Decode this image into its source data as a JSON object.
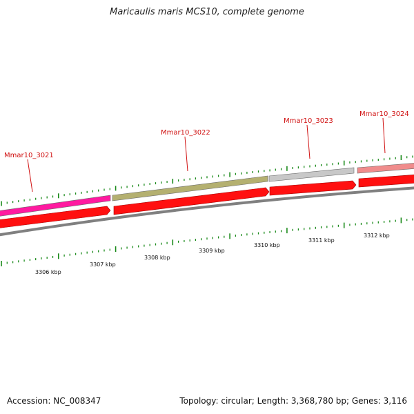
{
  "title": "Maricaulis maris MCS10, complete genome",
  "footer": {
    "accession": "Accession: NC_008347",
    "summary": "Topology: circular; Length: 3,368,780 bp; Genes: 3,116"
  },
  "genes": [
    {
      "label": "Mmar10_3021",
      "color": "#ff1aa0"
    },
    {
      "label": "Mmar10_3022",
      "color": "#b4b070"
    },
    {
      "label": "Mmar10_3023",
      "color": "#c8c8c8"
    },
    {
      "label": "Mmar10_3024",
      "color": "#f08c8c"
    }
  ],
  "cds_color": "#ff1010",
  "backbone_color": "#808080",
  "tick_color": "#1a8a1a",
  "kbp_labels": [
    "3306 kbp",
    "3307 kbp",
    "3308 kbp",
    "3309 kbp",
    "3310 kbp",
    "3311 kbp",
    "3312 kbp"
  ]
}
